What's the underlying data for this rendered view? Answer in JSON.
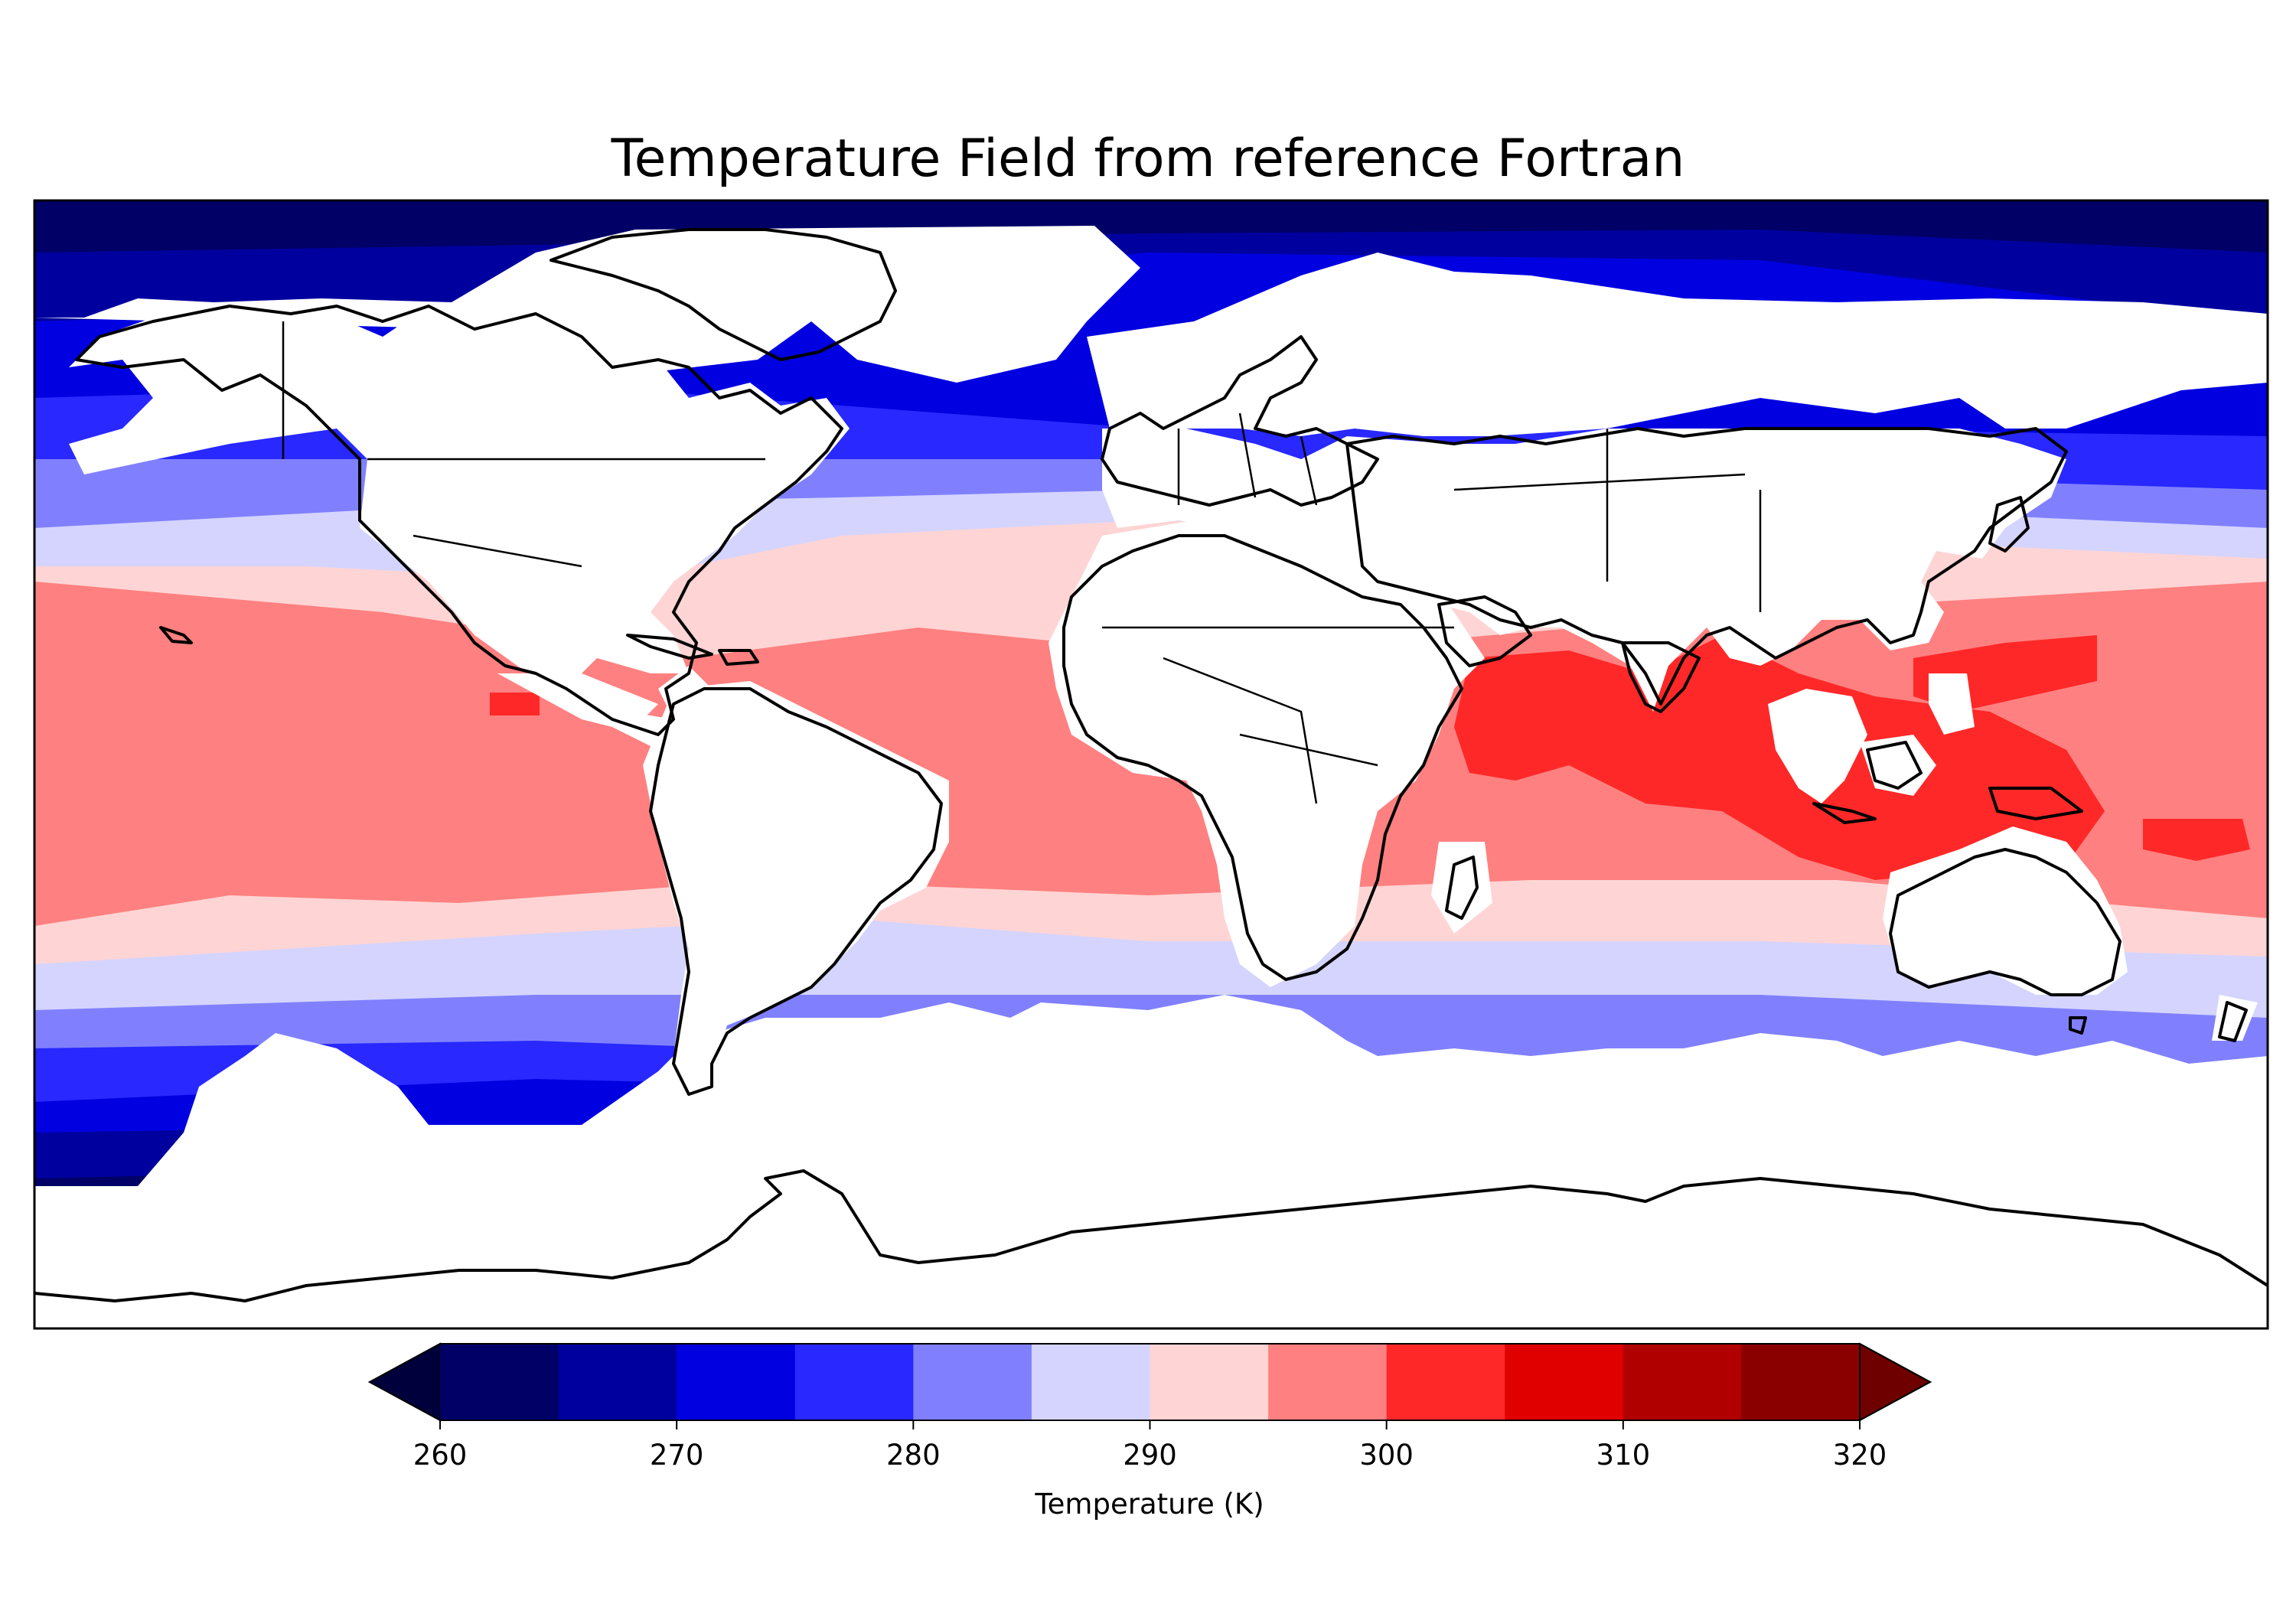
{
  "map": {
    "title": "Temperature Field from reference Fortran",
    "projection": "PlateCarree",
    "variable": "Temperature",
    "units": "K"
  },
  "colorbar": {
    "label": "Temperature (K)",
    "min": 260,
    "max": 320,
    "step": 5,
    "extend": "both",
    "ticks": [
      "260",
      "270",
      "280",
      "290",
      "300",
      "310",
      "320"
    ],
    "tick_values": [
      260,
      270,
      280,
      290,
      300,
      310,
      320
    ],
    "colors": [
      "#000066",
      "#00009f",
      "#0000e0",
      "#2828ff",
      "#8080ff",
      "#d4d4ff",
      "#ffd4d4",
      "#ff8080",
      "#ff2828",
      "#e00000",
      "#b00000",
      "#8a0000"
    ],
    "under_color": "#00003c",
    "over_color": "#6e0000"
  },
  "colors": {
    "land": "#ffffff",
    "coastline": "#000000"
  }
}
